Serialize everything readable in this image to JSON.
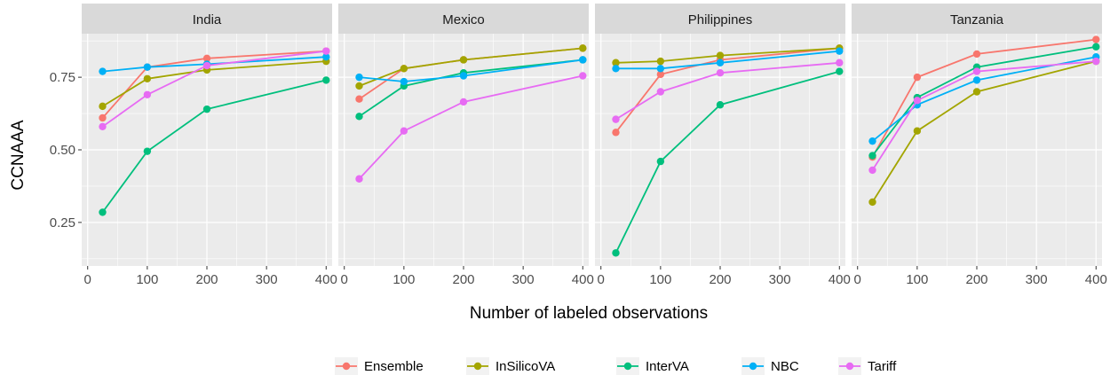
{
  "chart_data": {
    "type": "line",
    "facet_by": "country",
    "xlabel": "Number of labeled observations",
    "ylabel": "CCNAAA",
    "xlim": [
      -10,
      410
    ],
    "ylim": [
      0.1,
      0.9
    ],
    "x_ticks": [
      0,
      100,
      200,
      300,
      400
    ],
    "y_ticks": [
      0.25,
      0.5,
      0.75
    ],
    "y_tick_labels": [
      "0.25",
      "0.50",
      "0.75"
    ],
    "grid": true,
    "legend_position": "bottom",
    "x": [
      25,
      100,
      200,
      400
    ],
    "series_names": [
      "Ensemble",
      "InSilicoVA",
      "InterVA",
      "NBC",
      "Tariff"
    ],
    "colors": {
      "Ensemble": "#F8766D",
      "InSilicoVA": "#A3A500",
      "InterVA": "#00BF7D",
      "NBC": "#00B0F6",
      "Tariff": "#E76BF3"
    },
    "panels": [
      {
        "title": "India",
        "series": [
          {
            "name": "Ensemble",
            "values": [
              0.61,
              0.785,
              0.815,
              0.84
            ]
          },
          {
            "name": "InSilicoVA",
            "values": [
              0.65,
              0.745,
              0.775,
              0.805
            ]
          },
          {
            "name": "InterVA",
            "values": [
              0.285,
              0.495,
              0.64,
              0.74
            ]
          },
          {
            "name": "NBC",
            "values": [
              0.77,
              0.785,
              0.795,
              0.82
            ]
          },
          {
            "name": "Tariff",
            "values": [
              0.58,
              0.69,
              0.79,
              0.84
            ]
          }
        ]
      },
      {
        "title": "Mexico",
        "series": [
          {
            "name": "Ensemble",
            "values": [
              0.675,
              0.78,
              0.81,
              0.85
            ]
          },
          {
            "name": "InSilicoVA",
            "values": [
              0.72,
              0.78,
              0.81,
              0.85
            ]
          },
          {
            "name": "InterVA",
            "values": [
              0.615,
              0.72,
              0.765,
              0.81
            ]
          },
          {
            "name": "NBC",
            "values": [
              0.75,
              0.735,
              0.755,
              0.81
            ]
          },
          {
            "name": "Tariff",
            "values": [
              0.4,
              0.565,
              0.665,
              0.755
            ]
          }
        ]
      },
      {
        "title": "Philippines",
        "series": [
          {
            "name": "Ensemble",
            "values": [
              0.56,
              0.76,
              0.81,
              0.85
            ]
          },
          {
            "name": "InSilicoVA",
            "values": [
              0.8,
              0.805,
              0.825,
              0.85
            ]
          },
          {
            "name": "InterVA",
            "values": [
              0.145,
              0.46,
              0.655,
              0.77
            ]
          },
          {
            "name": "NBC",
            "values": [
              0.78,
              0.78,
              0.8,
              0.84
            ]
          },
          {
            "name": "Tariff",
            "values": [
              0.605,
              0.7,
              0.765,
              0.8
            ]
          }
        ]
      },
      {
        "title": "Tanzania",
        "series": [
          {
            "name": "Ensemble",
            "values": [
              0.475,
              0.75,
              0.83,
              0.88
            ]
          },
          {
            "name": "InSilicoVA",
            "values": [
              0.32,
              0.565,
              0.7,
              0.805
            ]
          },
          {
            "name": "InterVA",
            "values": [
              0.48,
              0.68,
              0.785,
              0.855
            ]
          },
          {
            "name": "NBC",
            "values": [
              0.53,
              0.655,
              0.74,
              0.82
            ]
          },
          {
            "name": "Tariff",
            "values": [
              0.43,
              0.67,
              0.77,
              0.805
            ]
          }
        ]
      }
    ]
  }
}
